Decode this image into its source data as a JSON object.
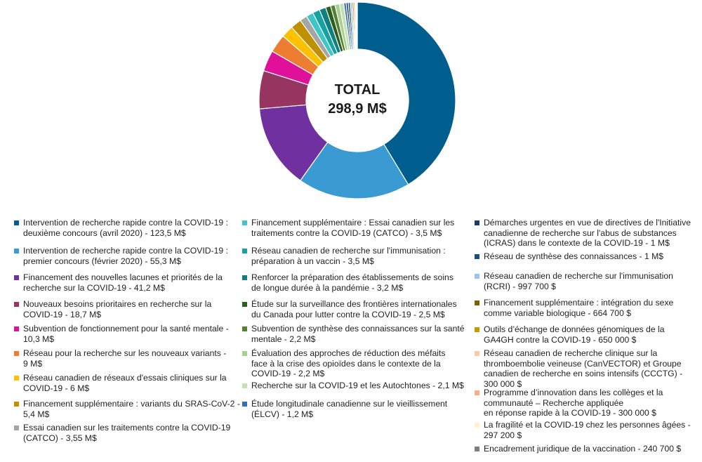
{
  "chart_data": {
    "type": "pie",
    "center": {
      "line1": "TOTAL",
      "line2": "298,9 M$"
    },
    "slices": [
      {
        "label": "Intervention de recherche rapide contre la COVID-19 :\ndeuxième concours (avril 2020) - 123,5 M$",
        "value": 123.5,
        "color": "#005E8E"
      },
      {
        "label": "Intervention de recherche rapide contre la COVID-19 :\npremier concours (février 2020) - 55,3 M$",
        "value": 55.3,
        "color": "#3A9BD2"
      },
      {
        "label": "Financement des nouvelles lacunes et priorités de la\nrecherche sur la COVID-19 - 41,2 M$",
        "value": 41.2,
        "color": "#7030A0"
      },
      {
        "label": "Nouveaux besoins prioritaires en recherche sur la\nCOVID-19 - 18,7 M$",
        "value": 18.7,
        "color": "#963560"
      },
      {
        "label": "Subvention de fonctionnement pour la santé mentale -\n10,3 M$",
        "value": 10.3,
        "color": "#E0109B"
      },
      {
        "label": "Réseau pour la recherche sur les nouveaux variants -\n9 M$",
        "value": 9.0,
        "color": "#ED7D31"
      },
      {
        "label": "Réseau canadien de réseaux d'essais cliniques sur la\nCOVID-19 - 6 M$",
        "value": 6.0,
        "color": "#FFC000"
      },
      {
        "label": "Financement supplémentaire : variants du SRAS-CoV-2 -\n5,4 M$",
        "value": 5.4,
        "color": "#BF9000"
      },
      {
        "label": "Essai canadien sur les traitements contre la COVID-19\n(CATCO) - 3,55 M$",
        "value": 3.55,
        "color": "#A5A5A5"
      },
      {
        "label": "Financement supplémentaire : Essai canadien sur les\ntraitements contre la COVID-19 (CATCO) - 3,5 M$",
        "value": 3.5,
        "color": "#3CC6C6"
      },
      {
        "label": "Réseau canadien de recherche sur l'immunisation :\npréparation à un vaccin - 3,5 M$",
        "value": 3.5,
        "color": "#17A2A2"
      },
      {
        "label": "Renforcer la préparation des établissements de soins\nde longue durée à la pandémie - 3,2 M$",
        "value": 3.2,
        "color": "#0F7F7F"
      },
      {
        "label": "Étude sur la surveillance des frontières internationales\ndu Canada pour lutter contre la COVID-19 - 2,5 M$",
        "value": 2.5,
        "color": "#2E5E1E"
      },
      {
        "label": "Subvention de synthèse des connaissances sur la santé\nmentale - 2,2 M$",
        "value": 2.2,
        "color": "#548235"
      },
      {
        "label": "Évaluation des approches de réduction des méfaits\nface à la crise des opioïdes dans le contexte de la\nCOVID-19 - 2,2 M$",
        "value": 2.2,
        "color": "#A9D18E"
      },
      {
        "label": "Recherche sur la COVID-19 et les Autochtones - 2,1 M$",
        "value": 2.1,
        "color": "#C5E0B4"
      },
      {
        "label": "Étude longitudinale canadienne sur le vieillissement\n(ÉLCV) - 1,2 M$",
        "value": 1.2,
        "color": "#2F75B5"
      },
      {
        "label": "Démarches urgentes en vue de directives de l'Initiative\ncanadienne de recherche sur l'abus de substances\n(ICRAS) dans le contexte de la COVID-19 - 1 M$",
        "value": 1.0,
        "color": "#1F3864"
      },
      {
        "label": "Réseau de synthèse des connaissances - 1 M$",
        "value": 1.0,
        "color": "#1F4E79"
      },
      {
        "label": "Réseau canadien de recherche sur l'immunisation\n(RCRI) - 997 700 $",
        "value": 0.9977,
        "color": "#9DC3E6"
      },
      {
        "label": "Financement supplémentaire : intégration du sexe\ncomme variable biologique - 664 700 $",
        "value": 0.6647,
        "color": "#7F6000"
      },
      {
        "label": "Outils d’échange de données génomiques de la\nGA4GH contre la COVID-19 - 650 000 $",
        "value": 0.65,
        "color": "#C49A00"
      },
      {
        "label": "Réseau canadien de recherche clinique sur la\nthromboembolie veineuse (CanVECTOR) et Groupe\ncanadien de recherche en soins intensifs (CCCTG) -\n300 000 $",
        "value": 0.3,
        "color": "#F8CBAD"
      },
      {
        "label": "Programme d’innovation dans les collèges et la\ncommunauté – Recherche appliquée\nen réponse rapide à la COVID-19 - 300 000 $",
        "value": 0.3,
        "color": "#F4B183"
      },
      {
        "label": "La fragilité et la COVID-19 chez les personnes âgées -\n297 200 $",
        "value": 0.2972,
        "color": "#FFF2CC"
      },
      {
        "label": "Encadrement juridique de la vaccination - 240 700 $",
        "value": 0.2407,
        "color": "#7F7F7F"
      }
    ]
  }
}
